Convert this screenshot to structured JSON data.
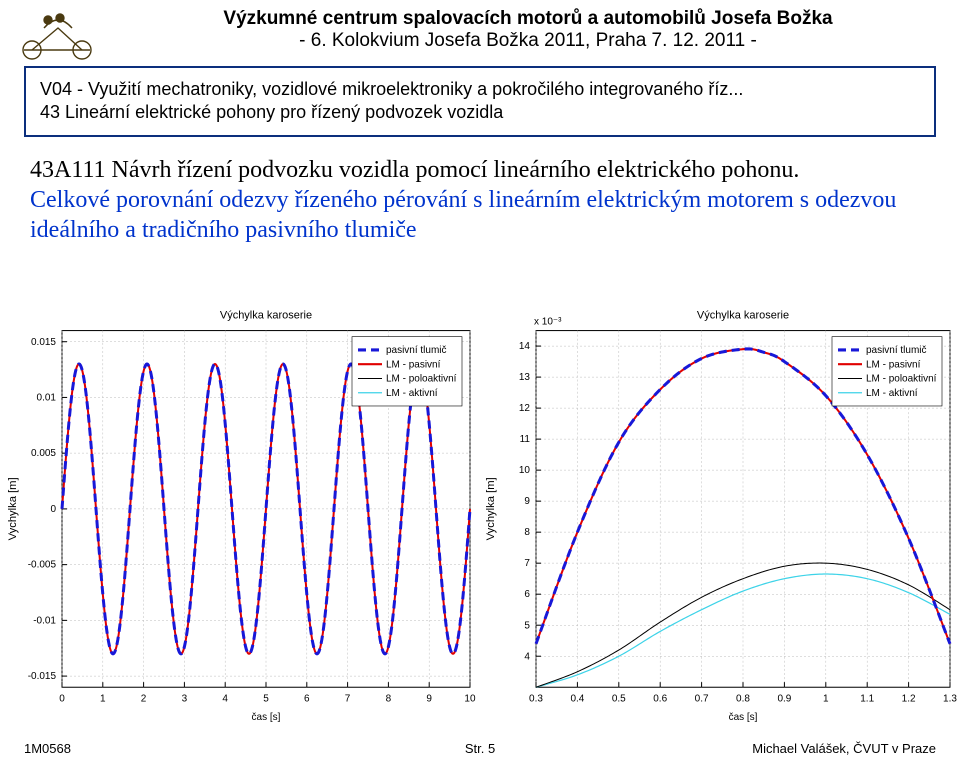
{
  "header": {
    "title_bold": "Výzkumné centrum spalovacích motorů a automobilů Josefa Božka",
    "title_sub": "- 6. Kolokvium Josefa Božka 2011, Praha 7. 12. 2011 -"
  },
  "box": {
    "line1": "V04 - Využití mechatroniky, vozidlové mikroelektroniky a pokročilého integrovaného říz...",
    "line2": "43 Lineární elektrické pohony pro řízený podvozek vozidla"
  },
  "body": {
    "main": "43A111 Návrh řízení podvozku vozidla pomocí lineárního elektrického pohonu.",
    "comp": "Celkové porovnání odezvy řízeného pérování s lineárním elektrickým motorem s odezvou ideálního a tradičního pasivního tlumiče"
  },
  "footer": {
    "left": "1M0568",
    "mid": "Str. 5",
    "right": "Michael Valášek, ČVUT v Praze"
  },
  "legend": {
    "items": [
      "pasivní tlumič",
      "LM - pasivní",
      "LM - poloaktivní",
      "LM - aktivní"
    ],
    "colors": [
      "#1818d8",
      "#e00000",
      "#000000",
      "#3dd3e8"
    ],
    "dash": [
      "8,5",
      "",
      "",
      ""
    ],
    "widths": [
      3,
      2,
      1,
      1.2
    ]
  },
  "chart_left": {
    "title": "Výchylka karoserie",
    "ylabel": "Vychylka [m]",
    "xlabel": "čas [s]",
    "xlim": [
      0,
      10
    ],
    "xtick_step": 1,
    "ylim": [
      -0.016,
      0.016
    ],
    "yticks": [
      -0.015,
      -0.01,
      -0.005,
      0,
      0.005,
      0.01,
      0.015
    ],
    "ytick_labels": [
      "-0.015",
      "-0.01",
      "-0.005",
      "0",
      "0.005",
      "0.01",
      "0.015"
    ],
    "sine": {
      "amplitude": 0.013,
      "freq_hz": 0.6,
      "phase": 0
    },
    "background_color": "#ffffff",
    "grid_color": "#bcbcbc"
  },
  "chart_right": {
    "title": "Výchylka karoserie",
    "ylabel": "Vychylka [m]",
    "xlabel": "čas [s]",
    "y_exp_label": "x 10⁻³",
    "xlim": [
      0.3,
      1.3
    ],
    "xticks": [
      0.3,
      0.4,
      0.5,
      0.6,
      0.7,
      0.8,
      0.9,
      1,
      1.1,
      1.2,
      1.3
    ],
    "ylim": [
      3,
      14.5
    ],
    "yticks": [
      4,
      5,
      6,
      7,
      8,
      9,
      10,
      11,
      12,
      13,
      14
    ],
    "background_color": "#ffffff",
    "grid_color": "#bcbcbc",
    "curves": {
      "top": {
        "comment": "overlapping pasivni+LM-pasivni big arc",
        "pts": [
          [
            0.3,
            4.4
          ],
          [
            0.4,
            8.0
          ],
          [
            0.5,
            10.9
          ],
          [
            0.6,
            12.6
          ],
          [
            0.7,
            13.6
          ],
          [
            0.8,
            13.9
          ],
          [
            0.85,
            13.8
          ],
          [
            0.9,
            13.5
          ],
          [
            1.0,
            12.4
          ],
          [
            1.1,
            10.5
          ],
          [
            1.2,
            7.8
          ],
          [
            1.3,
            4.4
          ]
        ]
      },
      "black": {
        "pts": [
          [
            0.3,
            3.0
          ],
          [
            0.4,
            3.5
          ],
          [
            0.5,
            4.2
          ],
          [
            0.6,
            5.1
          ],
          [
            0.7,
            5.9
          ],
          [
            0.8,
            6.5
          ],
          [
            0.9,
            6.9
          ],
          [
            1.0,
            7.0
          ],
          [
            1.1,
            6.8
          ],
          [
            1.2,
            6.3
          ],
          [
            1.3,
            5.5
          ]
        ]
      },
      "cyan": {
        "pts": [
          [
            0.3,
            3.0
          ],
          [
            0.4,
            3.4
          ],
          [
            0.5,
            4.0
          ],
          [
            0.6,
            4.8
          ],
          [
            0.7,
            5.5
          ],
          [
            0.8,
            6.1
          ],
          [
            0.9,
            6.5
          ],
          [
            1.0,
            6.65
          ],
          [
            1.1,
            6.5
          ],
          [
            1.2,
            6.05
          ],
          [
            1.3,
            5.35
          ]
        ]
      }
    }
  }
}
